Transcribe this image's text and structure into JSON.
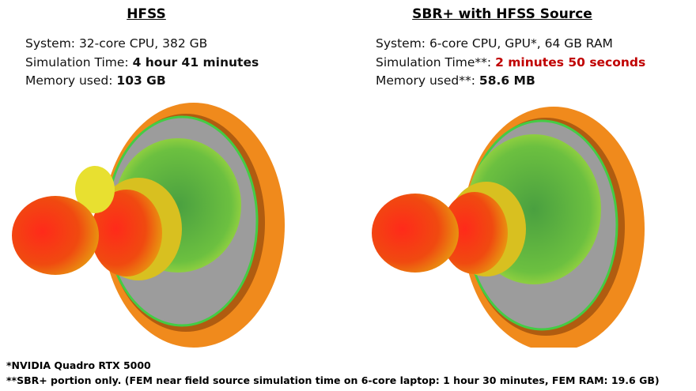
{
  "panels": [
    {
      "title": "HFSS",
      "system": "System: 32-core CPU, 382 GB",
      "time_label": "Simulation Time:",
      "time": "4 hour 41 minutes",
      "memory_label": "Memory used:",
      "memory": "103 GB"
    },
    {
      "title": "SBR+ with HFSS Source",
      "system": "System: 6-core CPU, GPU*, 64 GB RAM",
      "time_label": "Simulation Time**:",
      "time": "2 minutes 50 seconds",
      "memory_label": "Memory used**:",
      "memory": "58.6 MB"
    }
  ],
  "footnotes": [
    "*NVIDIA Quadro RTX 5000",
    "**SBR+ portion only. (FEM near field source simulation time on 6-core laptop: 1 hour 30 minutes, FEM RAM: 19.6 GB)"
  ]
}
